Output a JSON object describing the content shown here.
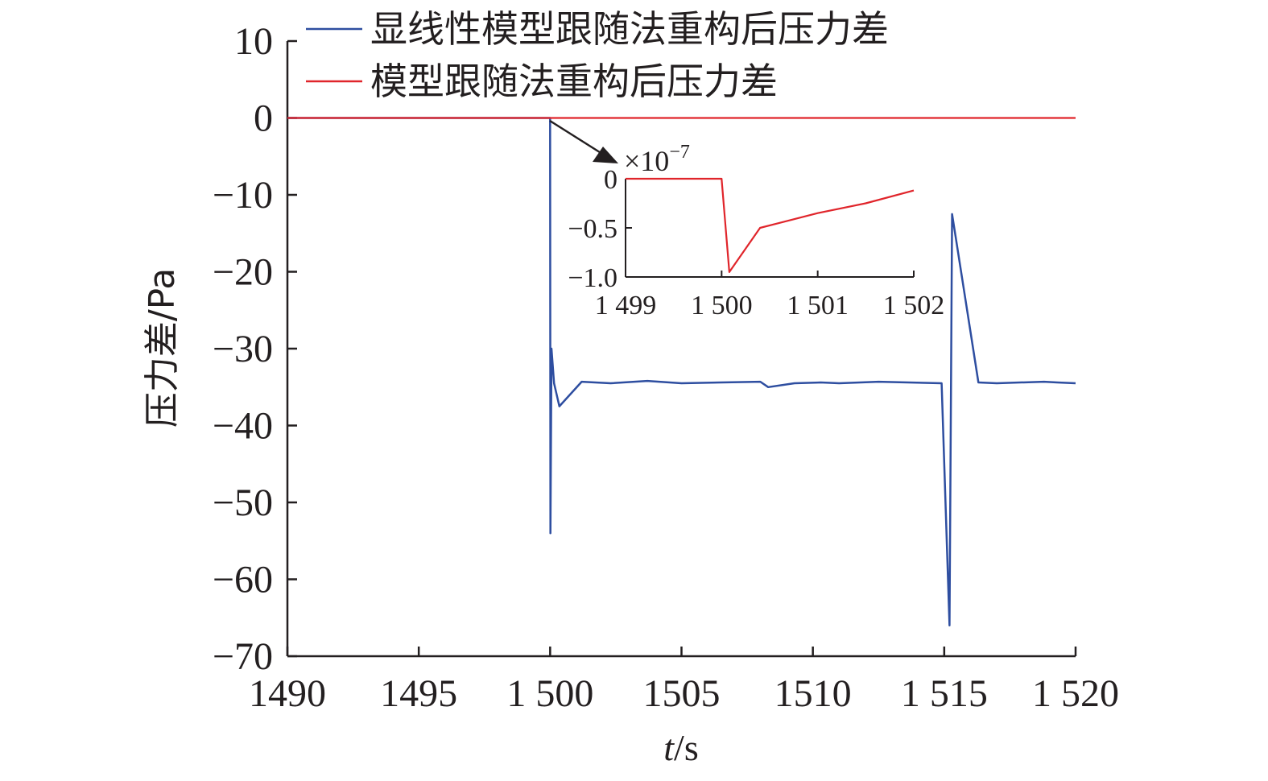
{
  "chart_data": [
    {
      "type": "line",
      "xlabel": {
        "italic": "t",
        "rest": "/s"
      },
      "ylabel": "压力差/Pa",
      "xlim": [
        1490,
        1520
      ],
      "ylim": [
        -70,
        10
      ],
      "x_ticks": [
        1490,
        1495,
        1500,
        1505,
        1510,
        1515,
        1520
      ],
      "x_tick_labels": [
        "1490",
        "1495",
        "1 500",
        "1505",
        "1510",
        "1 515",
        "1 520"
      ],
      "y_ticks": [
        10,
        0,
        -10,
        -20,
        -30,
        -40,
        -50,
        -60,
        -70
      ],
      "y_tick_labels": [
        "10",
        "0",
        "−10",
        "−20",
        "−30",
        "−40",
        "−50",
        "−60",
        "−70"
      ],
      "grid": false,
      "legend_position": "top",
      "series": [
        {
          "name": "显线性模型跟随法重构后压力差",
          "color": "#2e4ea0",
          "x": [
            1490,
            1500,
            1500.01,
            1500.05,
            1500.15,
            1500.35,
            1501.2,
            1502.3,
            1503.7,
            1505,
            1506.5,
            1508,
            1508.3,
            1509.3,
            1510.3,
            1511.0,
            1512.5,
            1514.9,
            1515.2,
            1515.3,
            1516.3,
            1517.0,
            1518.8,
            1519.3,
            1520
          ],
          "y": [
            0,
            0,
            -54,
            -30,
            -34.5,
            -37.5,
            -34.3,
            -34.5,
            -34.2,
            -34.5,
            -34.4,
            -34.3,
            -35,
            -34.5,
            -34.4,
            -34.5,
            -34.3,
            -34.5,
            -66,
            -12.5,
            -34.4,
            -34.5,
            -34.3,
            -34.4,
            -34.5
          ]
        },
        {
          "name": "模型跟随法重构后压力差",
          "color": "#e0252b",
          "x": [
            1490,
            1520
          ],
          "y": [
            0,
            0
          ]
        }
      ]
    },
    {
      "type": "line",
      "role": "inset",
      "exponent_label": {
        "base": "×10",
        "power": "−7"
      },
      "xlim": [
        1499,
        1502
      ],
      "ylim": [
        -1.0,
        0
      ],
      "x_ticks": [
        1499,
        1500,
        1501,
        1502
      ],
      "x_tick_labels": [
        "1 499",
        "1 500",
        "1 501",
        "1 502"
      ],
      "y_ticks": [
        0,
        -0.5,
        -1.0
      ],
      "y_tick_labels": [
        "0",
        "−0.5",
        "−1.0"
      ],
      "series": [
        {
          "color": "#e0252b",
          "x": [
            1499,
            1500.0,
            1500.08,
            1500.4,
            1500.6,
            1501.0,
            1501.5,
            1502.0
          ],
          "y": [
            0,
            0,
            -0.95,
            -0.5,
            -0.45,
            -0.35,
            -0.25,
            -0.12
          ]
        }
      ]
    }
  ]
}
